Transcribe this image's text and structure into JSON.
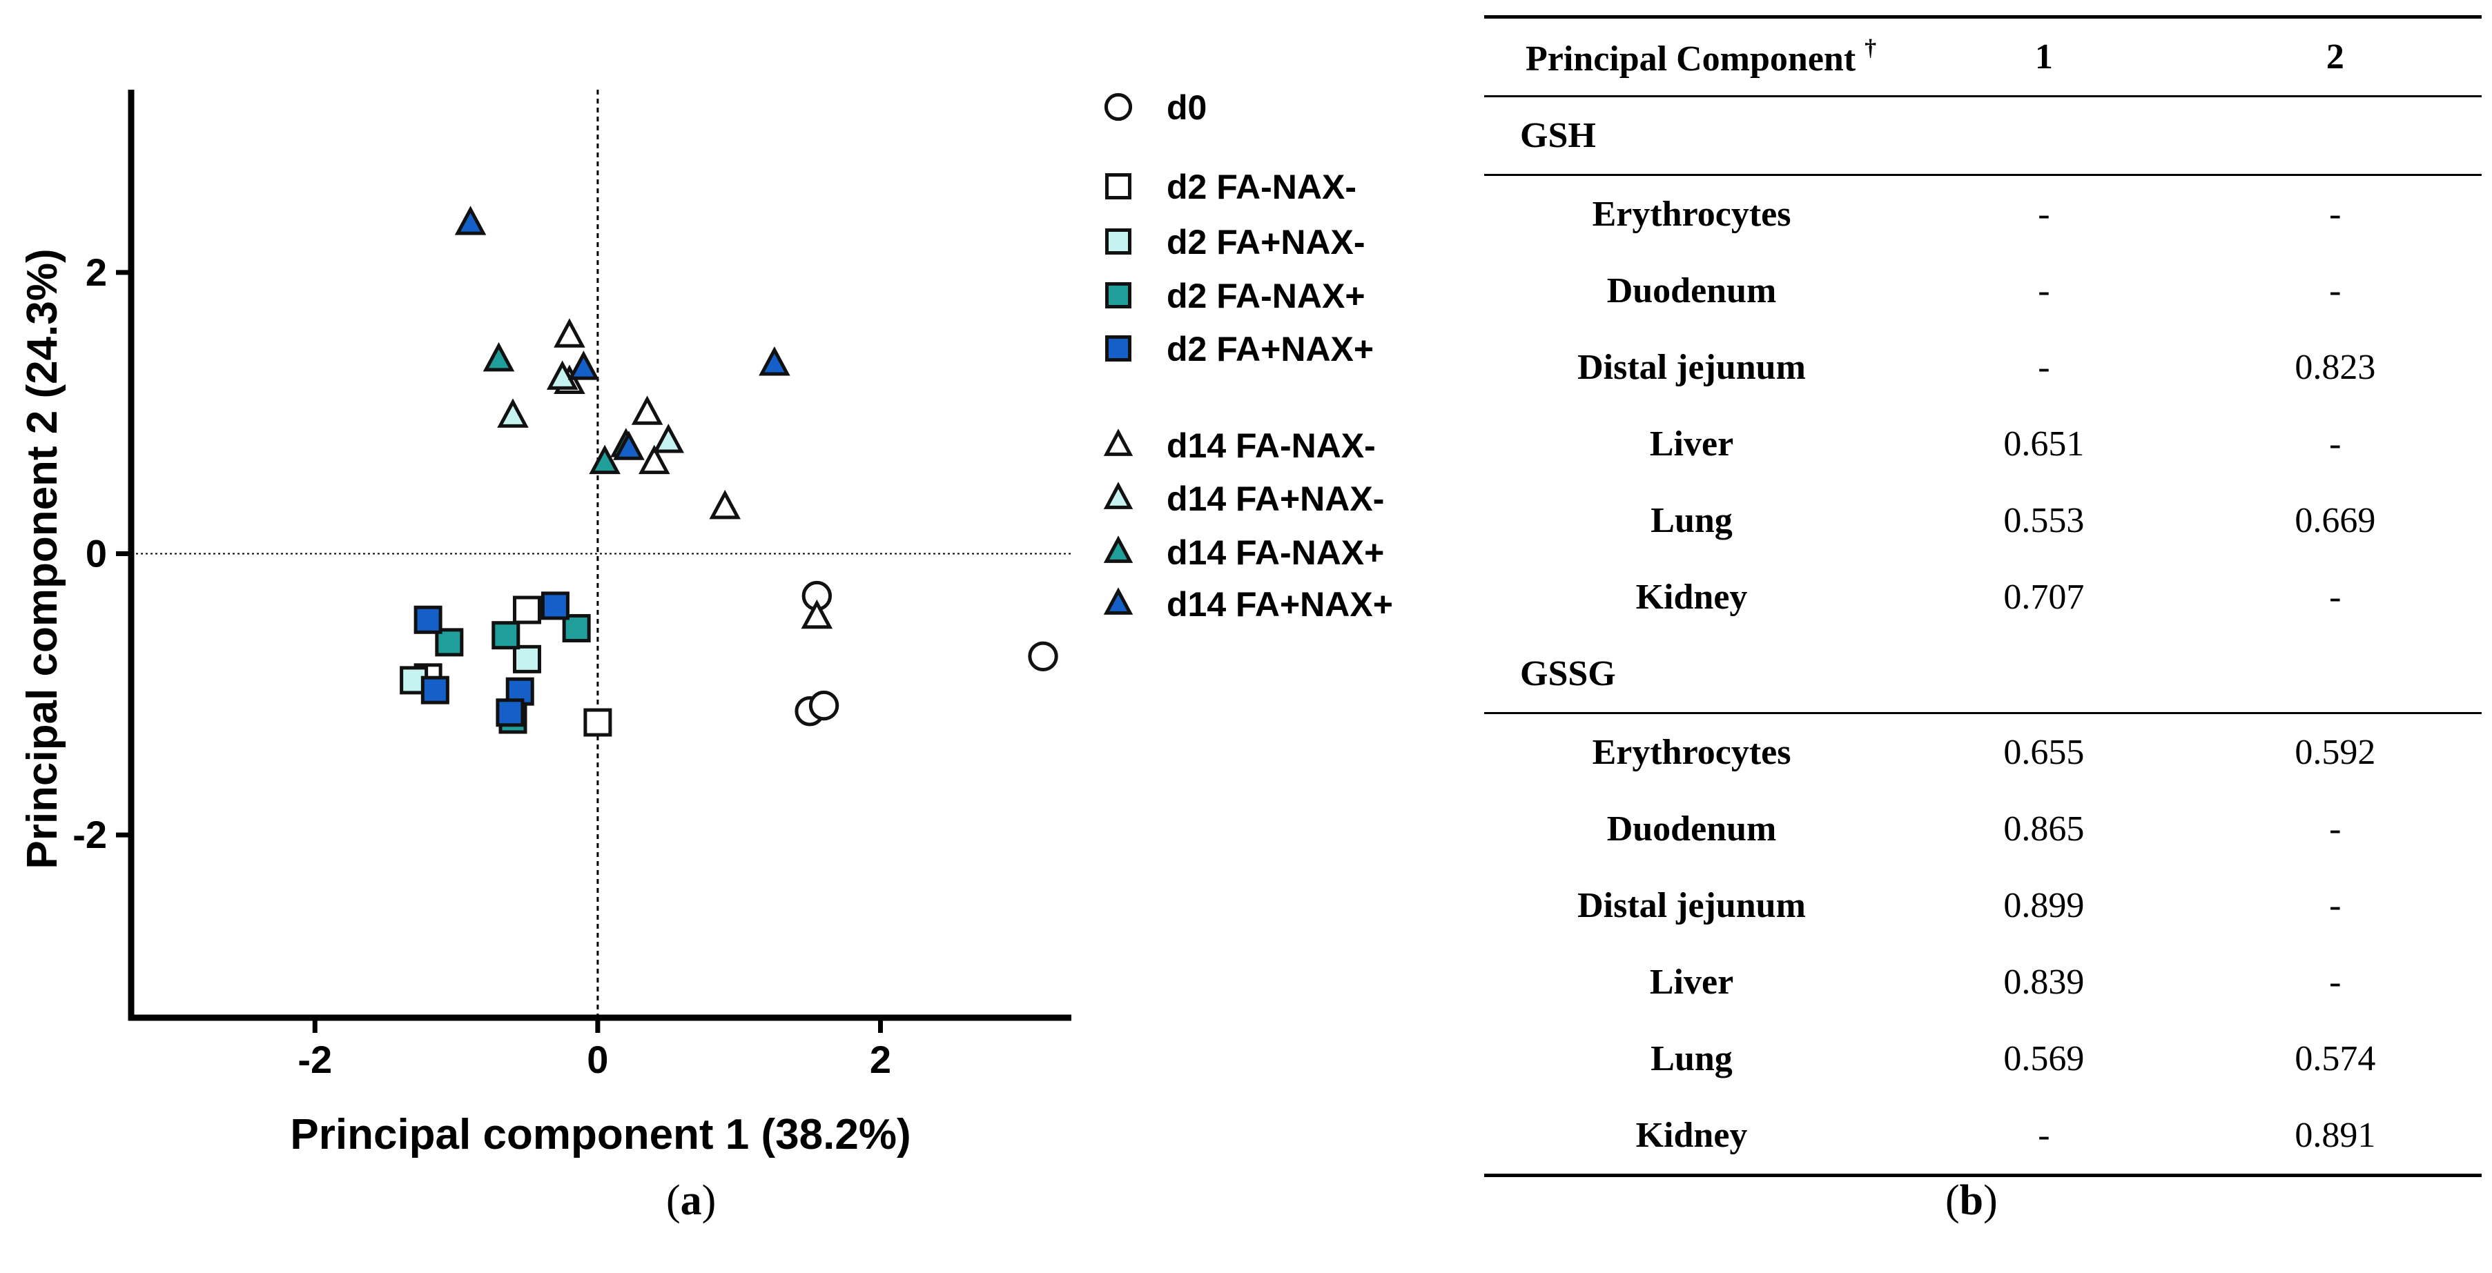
{
  "chart_data": {
    "type": "scatter",
    "xlabel": "Principal component 1 (38.2%)",
    "ylabel": "Principal component 2 (24.3%)",
    "xlim": [
      -3.3,
      3.35
    ],
    "ylim": [
      -3.3,
      3.3
    ],
    "xticks": [
      -2,
      0,
      2
    ],
    "yticks": [
      -2,
      0,
      2
    ],
    "xtick_labels": [
      "-2",
      "0",
      "2"
    ],
    "ytick_labels": [
      "-2",
      "0",
      "2"
    ],
    "reference_lines": {
      "x": 0,
      "y": 0,
      "style": "dashed"
    },
    "legend_position": "right",
    "series": [
      {
        "name": "d0",
        "marker": "circle",
        "color": "#ffffff",
        "points": [
          [
            1.55,
            -0.3
          ],
          [
            1.5,
            -1.12
          ],
          [
            1.6,
            -1.08
          ],
          [
            3.15,
            -0.73
          ]
        ]
      },
      {
        "name": "d2 FA-NAX-",
        "marker": "square",
        "color": "#ffffff",
        "points": [
          [
            -0.5,
            -0.4
          ],
          [
            0.0,
            -1.2
          ],
          [
            -1.2,
            -0.88
          ]
        ]
      },
      {
        "name": "d2 FA+NAX-",
        "marker": "square",
        "color": "#c6f2ef",
        "points": [
          [
            -1.3,
            -0.9
          ],
          [
            -0.5,
            -0.75
          ]
        ]
      },
      {
        "name": "d2 FA-NAX+",
        "marker": "square",
        "color": "#1f9e9a",
        "points": [
          [
            -0.65,
            -0.58
          ],
          [
            -0.6,
            -1.18
          ],
          [
            -1.05,
            -0.63
          ],
          [
            -0.15,
            -0.53
          ]
        ]
      },
      {
        "name": "d2 FA+NAX+",
        "marker": "square",
        "color": "#1560c8",
        "points": [
          [
            -1.2,
            -0.47
          ],
          [
            -1.15,
            -0.97
          ],
          [
            -0.55,
            -0.98
          ],
          [
            -0.3,
            -0.37
          ],
          [
            -0.62,
            -1.13
          ]
        ]
      },
      {
        "name": "d14 FA-NAX-",
        "marker": "triangle",
        "color": "#ffffff",
        "points": [
          [
            -0.2,
            1.55
          ],
          [
            0.35,
            1.0
          ],
          [
            0.9,
            0.33
          ],
          [
            1.55,
            -0.45
          ],
          [
            0.4,
            0.65
          ],
          [
            -0.2,
            1.22
          ]
        ]
      },
      {
        "name": "d14 FA+NAX-",
        "marker": "triangle",
        "color": "#c6f2ef",
        "points": [
          [
            -0.6,
            0.98
          ],
          [
            0.5,
            0.8
          ],
          [
            -0.25,
            1.25
          ]
        ]
      },
      {
        "name": "d14 FA-NAX+",
        "marker": "triangle",
        "color": "#1f9e9a",
        "points": [
          [
            -0.7,
            1.38
          ],
          [
            0.05,
            0.65
          ],
          [
            0.2,
            0.77
          ]
        ]
      },
      {
        "name": "d14 FA+NAX+",
        "marker": "triangle",
        "color": "#1560c8",
        "points": [
          [
            -0.9,
            2.35
          ],
          [
            -0.1,
            1.32
          ],
          [
            1.25,
            1.35
          ],
          [
            0.22,
            0.75
          ]
        ]
      }
    ]
  },
  "captions": {
    "a": "a",
    "b": "b"
  },
  "table": {
    "header": {
      "label": "Principal Component",
      "footnote_mark": "†",
      "col1": "1",
      "col2": "2"
    },
    "sections": [
      {
        "name": "GSH",
        "rows": [
          {
            "tissue": "Erythrocytes",
            "pc1": "-",
            "pc2": "-"
          },
          {
            "tissue": "Duodenum",
            "pc1": "-",
            "pc2": "-"
          },
          {
            "tissue": "Distal jejunum",
            "pc1": "-",
            "pc2": "0.823"
          },
          {
            "tissue": "Liver",
            "pc1": "0.651",
            "pc2": "-"
          },
          {
            "tissue": "Lung",
            "pc1": "0.553",
            "pc2": "0.669"
          },
          {
            "tissue": "Kidney",
            "pc1": "0.707",
            "pc2": "-"
          }
        ]
      },
      {
        "name": "GSSG",
        "rows": [
          {
            "tissue": "Erythrocytes",
            "pc1": "0.655",
            "pc2": "0.592"
          },
          {
            "tissue": "Duodenum",
            "pc1": "0.865",
            "pc2": "-"
          },
          {
            "tissue": "Distal jejunum",
            "pc1": "0.899",
            "pc2": "-"
          },
          {
            "tissue": "Liver",
            "pc1": "0.839",
            "pc2": "-"
          },
          {
            "tissue": "Lung",
            "pc1": "0.569",
            "pc2": "0.574"
          },
          {
            "tissue": "Kidney",
            "pc1": "-",
            "pc2": "0.891"
          }
        ]
      }
    ]
  }
}
